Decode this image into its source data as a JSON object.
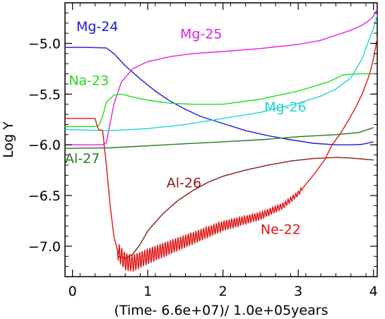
{
  "chart_data": {
    "type": "line",
    "title": "",
    "xlabel": "(Time- 6.6e+07)/ 1.0e+05years",
    "ylabel": "Log Y",
    "xlim": [
      -0.1,
      4.05
    ],
    "ylim": [
      -7.3,
      -4.6
    ],
    "x_ticks": [
      0,
      1,
      2,
      3,
      4
    ],
    "y_ticks": [
      -5.0,
      -5.5,
      -6.0,
      -6.5,
      -7.0
    ],
    "y_tick_labels": [
      "−5.0",
      "−5.5",
      "−6.0",
      "−6.5",
      "−7.0"
    ],
    "grid": false,
    "legend": "inline labels",
    "series": [
      {
        "name": "Mg-24",
        "color": "#1a1adb",
        "label_at": [
          0.05,
          -4.88
        ],
        "points": [
          [
            -0.1,
            -5.04
          ],
          [
            0.2,
            -5.04
          ],
          [
            0.45,
            -5.045
          ],
          [
            0.55,
            -5.1
          ],
          [
            0.7,
            -5.22
          ],
          [
            0.9,
            -5.35
          ],
          [
            1.1,
            -5.47
          ],
          [
            1.3,
            -5.57
          ],
          [
            1.5,
            -5.65
          ],
          [
            1.7,
            -5.72
          ],
          [
            2.0,
            -5.79
          ],
          [
            2.3,
            -5.86
          ],
          [
            2.6,
            -5.91
          ],
          [
            2.9,
            -5.95
          ],
          [
            3.2,
            -5.985
          ],
          [
            3.5,
            -6.0
          ],
          [
            3.7,
            -6.0
          ],
          [
            3.85,
            -5.995
          ],
          [
            4.0,
            -5.97
          ]
        ]
      },
      {
        "name": "Mg-25",
        "color": "#e020e0",
        "label_at": [
          1.43,
          -4.95
        ],
        "points": [
          [
            -0.1,
            -6.0
          ],
          [
            0.4,
            -6.0
          ],
          [
            0.45,
            -5.98
          ],
          [
            0.55,
            -5.6
          ],
          [
            0.65,
            -5.38
          ],
          [
            0.8,
            -5.25
          ],
          [
            1.0,
            -5.18
          ],
          [
            1.3,
            -5.13
          ],
          [
            1.6,
            -5.1
          ],
          [
            2.0,
            -5.08
          ],
          [
            2.5,
            -5.05
          ],
          [
            3.0,
            -5.01
          ],
          [
            3.3,
            -4.97
          ],
          [
            3.5,
            -4.92
          ],
          [
            3.7,
            -4.87
          ],
          [
            3.85,
            -4.82
          ],
          [
            3.95,
            -4.77
          ],
          [
            4.0,
            -4.73
          ],
          [
            4.05,
            -4.66
          ]
        ]
      },
      {
        "name": "Na-23",
        "color": "#20dd20",
        "label_at": [
          -0.05,
          -5.41
        ],
        "points": [
          [
            -0.1,
            -5.82
          ],
          [
            0.3,
            -5.82
          ],
          [
            0.35,
            -5.81
          ],
          [
            0.4,
            -5.72
          ],
          [
            0.45,
            -5.58
          ],
          [
            0.55,
            -5.51
          ],
          [
            0.65,
            -5.5
          ],
          [
            0.8,
            -5.53
          ],
          [
            1.0,
            -5.56
          ],
          [
            1.3,
            -5.59
          ],
          [
            1.6,
            -5.6
          ],
          [
            2.0,
            -5.6
          ],
          [
            2.5,
            -5.55
          ],
          [
            3.0,
            -5.47
          ],
          [
            3.4,
            -5.38
          ],
          [
            3.6,
            -5.31
          ],
          [
            3.8,
            -5.3
          ],
          [
            4.0,
            -5.3
          ]
        ]
      },
      {
        "name": "Mg-26",
        "color": "#20d4d4",
        "label_at": [
          2.55,
          -5.67
        ],
        "points": [
          [
            -0.1,
            -5.85
          ],
          [
            0.5,
            -5.86
          ],
          [
            1.0,
            -5.84
          ],
          [
            1.5,
            -5.8
          ],
          [
            2.0,
            -5.74
          ],
          [
            2.5,
            -5.68
          ],
          [
            3.0,
            -5.59
          ],
          [
            3.3,
            -5.52
          ],
          [
            3.5,
            -5.45
          ],
          [
            3.7,
            -5.34
          ],
          [
            3.85,
            -5.15
          ],
          [
            3.95,
            -4.95
          ],
          [
            4.0,
            -4.85
          ],
          [
            4.05,
            -4.72
          ]
        ]
      },
      {
        "name": "Al-27",
        "color": "#207a20",
        "label_at": [
          -0.1,
          -6.18
        ],
        "points": [
          [
            -0.1,
            -6.035
          ],
          [
            0.5,
            -6.03
          ],
          [
            1.0,
            -6.01
          ],
          [
            1.5,
            -5.99
          ],
          [
            2.0,
            -5.97
          ],
          [
            2.5,
            -5.95
          ],
          [
            3.0,
            -5.92
          ],
          [
            3.5,
            -5.9
          ],
          [
            3.8,
            -5.88
          ],
          [
            4.0,
            -5.83
          ]
        ]
      },
      {
        "name": "Al-26",
        "color": "#8b1a1a",
        "label_at": [
          1.25,
          -6.42
        ],
        "points": [
          [
            0.6,
            -7.1
          ],
          [
            0.7,
            -7.12
          ],
          [
            0.8,
            -7.08
          ],
          [
            0.9,
            -6.98
          ],
          [
            1.0,
            -6.85
          ],
          [
            1.2,
            -6.68
          ],
          [
            1.4,
            -6.55
          ],
          [
            1.6,
            -6.45
          ],
          [
            1.8,
            -6.37
          ],
          [
            2.0,
            -6.31
          ],
          [
            2.3,
            -6.25
          ],
          [
            2.6,
            -6.2
          ],
          [
            2.9,
            -6.16
          ],
          [
            3.2,
            -6.135
          ],
          [
            3.5,
            -6.125
          ],
          [
            3.7,
            -6.13
          ],
          [
            3.85,
            -6.14
          ],
          [
            4.0,
            -6.15
          ]
        ]
      },
      {
        "name": "Ne-22",
        "color": "#e01414",
        "label_at": [
          2.5,
          -6.88
        ],
        "points": [
          [
            -0.1,
            -5.74
          ],
          [
            0.3,
            -5.74
          ],
          [
            0.33,
            -5.82
          ],
          [
            0.35,
            -5.85
          ],
          [
            0.4,
            -5.86
          ],
          [
            0.45,
            -6.2
          ],
          [
            0.5,
            -6.6
          ],
          [
            0.55,
            -6.9
          ],
          [
            0.6,
            -7.05
          ],
          [
            0.7,
            -7.15
          ],
          [
            0.8,
            -7.17
          ],
          [
            1.0,
            -7.1
          ],
          [
            1.5,
            -6.95
          ],
          [
            2.0,
            -6.8
          ],
          [
            2.5,
            -6.7
          ],
          [
            2.8,
            -6.6
          ],
          [
            3.0,
            -6.48
          ],
          [
            3.2,
            -6.3
          ],
          [
            3.35,
            -6.15
          ],
          [
            3.45,
            -6.0
          ],
          [
            3.55,
            -5.9
          ],
          [
            3.65,
            -5.78
          ],
          [
            3.75,
            -5.65
          ],
          [
            3.85,
            -5.5
          ],
          [
            3.95,
            -5.3
          ],
          [
            4.0,
            -5.15
          ],
          [
            4.05,
            -4.95
          ]
        ]
      }
    ]
  }
}
